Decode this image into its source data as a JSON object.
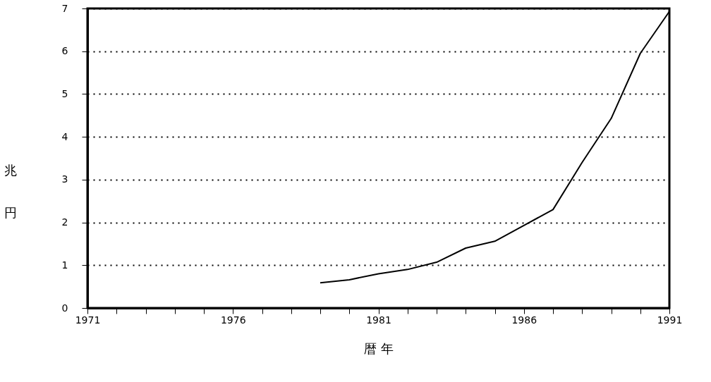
{
  "chart_data": {
    "type": "line",
    "xlabel": "暦 年",
    "ylabel": "兆円",
    "x": [
      1979,
      1980,
      1981,
      1982,
      1983,
      1984,
      1985,
      1986,
      1987,
      1988,
      1989,
      1990,
      1991
    ],
    "series": [
      {
        "color": "#000000",
        "values": [
          0.59,
          0.66,
          0.8,
          0.9,
          1.07,
          1.4,
          1.56,
          1.93,
          2.3,
          3.4,
          4.43,
          5.95,
          6.93
        ]
      }
    ],
    "xlim": [
      1971,
      1991
    ],
    "xticks": [
      1971,
      {
        "value": 1972,
        "label": null
      },
      {
        "value": 1973,
        "label": null
      },
      {
        "value": 1974,
        "label": null
      },
      {
        "value": 1975,
        "label": null
      },
      1976,
      {
        "value": 1977,
        "label": null
      },
      {
        "value": 1978,
        "label": null
      },
      {
        "value": 1979,
        "label": null
      },
      {
        "value": 1980,
        "label": null
      },
      1981,
      {
        "value": 1982,
        "label": null
      },
      {
        "value": 1983,
        "label": null
      },
      {
        "value": 1984,
        "label": null
      },
      {
        "value": 1985,
        "label": null
      },
      1986,
      {
        "value": 1987,
        "label": null
      },
      {
        "value": 1988,
        "label": null
      },
      {
        "value": 1989,
        "label": null
      },
      {
        "value": 1990,
        "label": null
      },
      1991
    ],
    "ylim": [
      0,
      7
    ],
    "yticks": [
      0,
      1,
      2,
      3,
      4,
      5,
      6,
      7
    ],
    "grid": "y",
    "legend": false,
    "line_style": "solid",
    "marker": "none"
  }
}
